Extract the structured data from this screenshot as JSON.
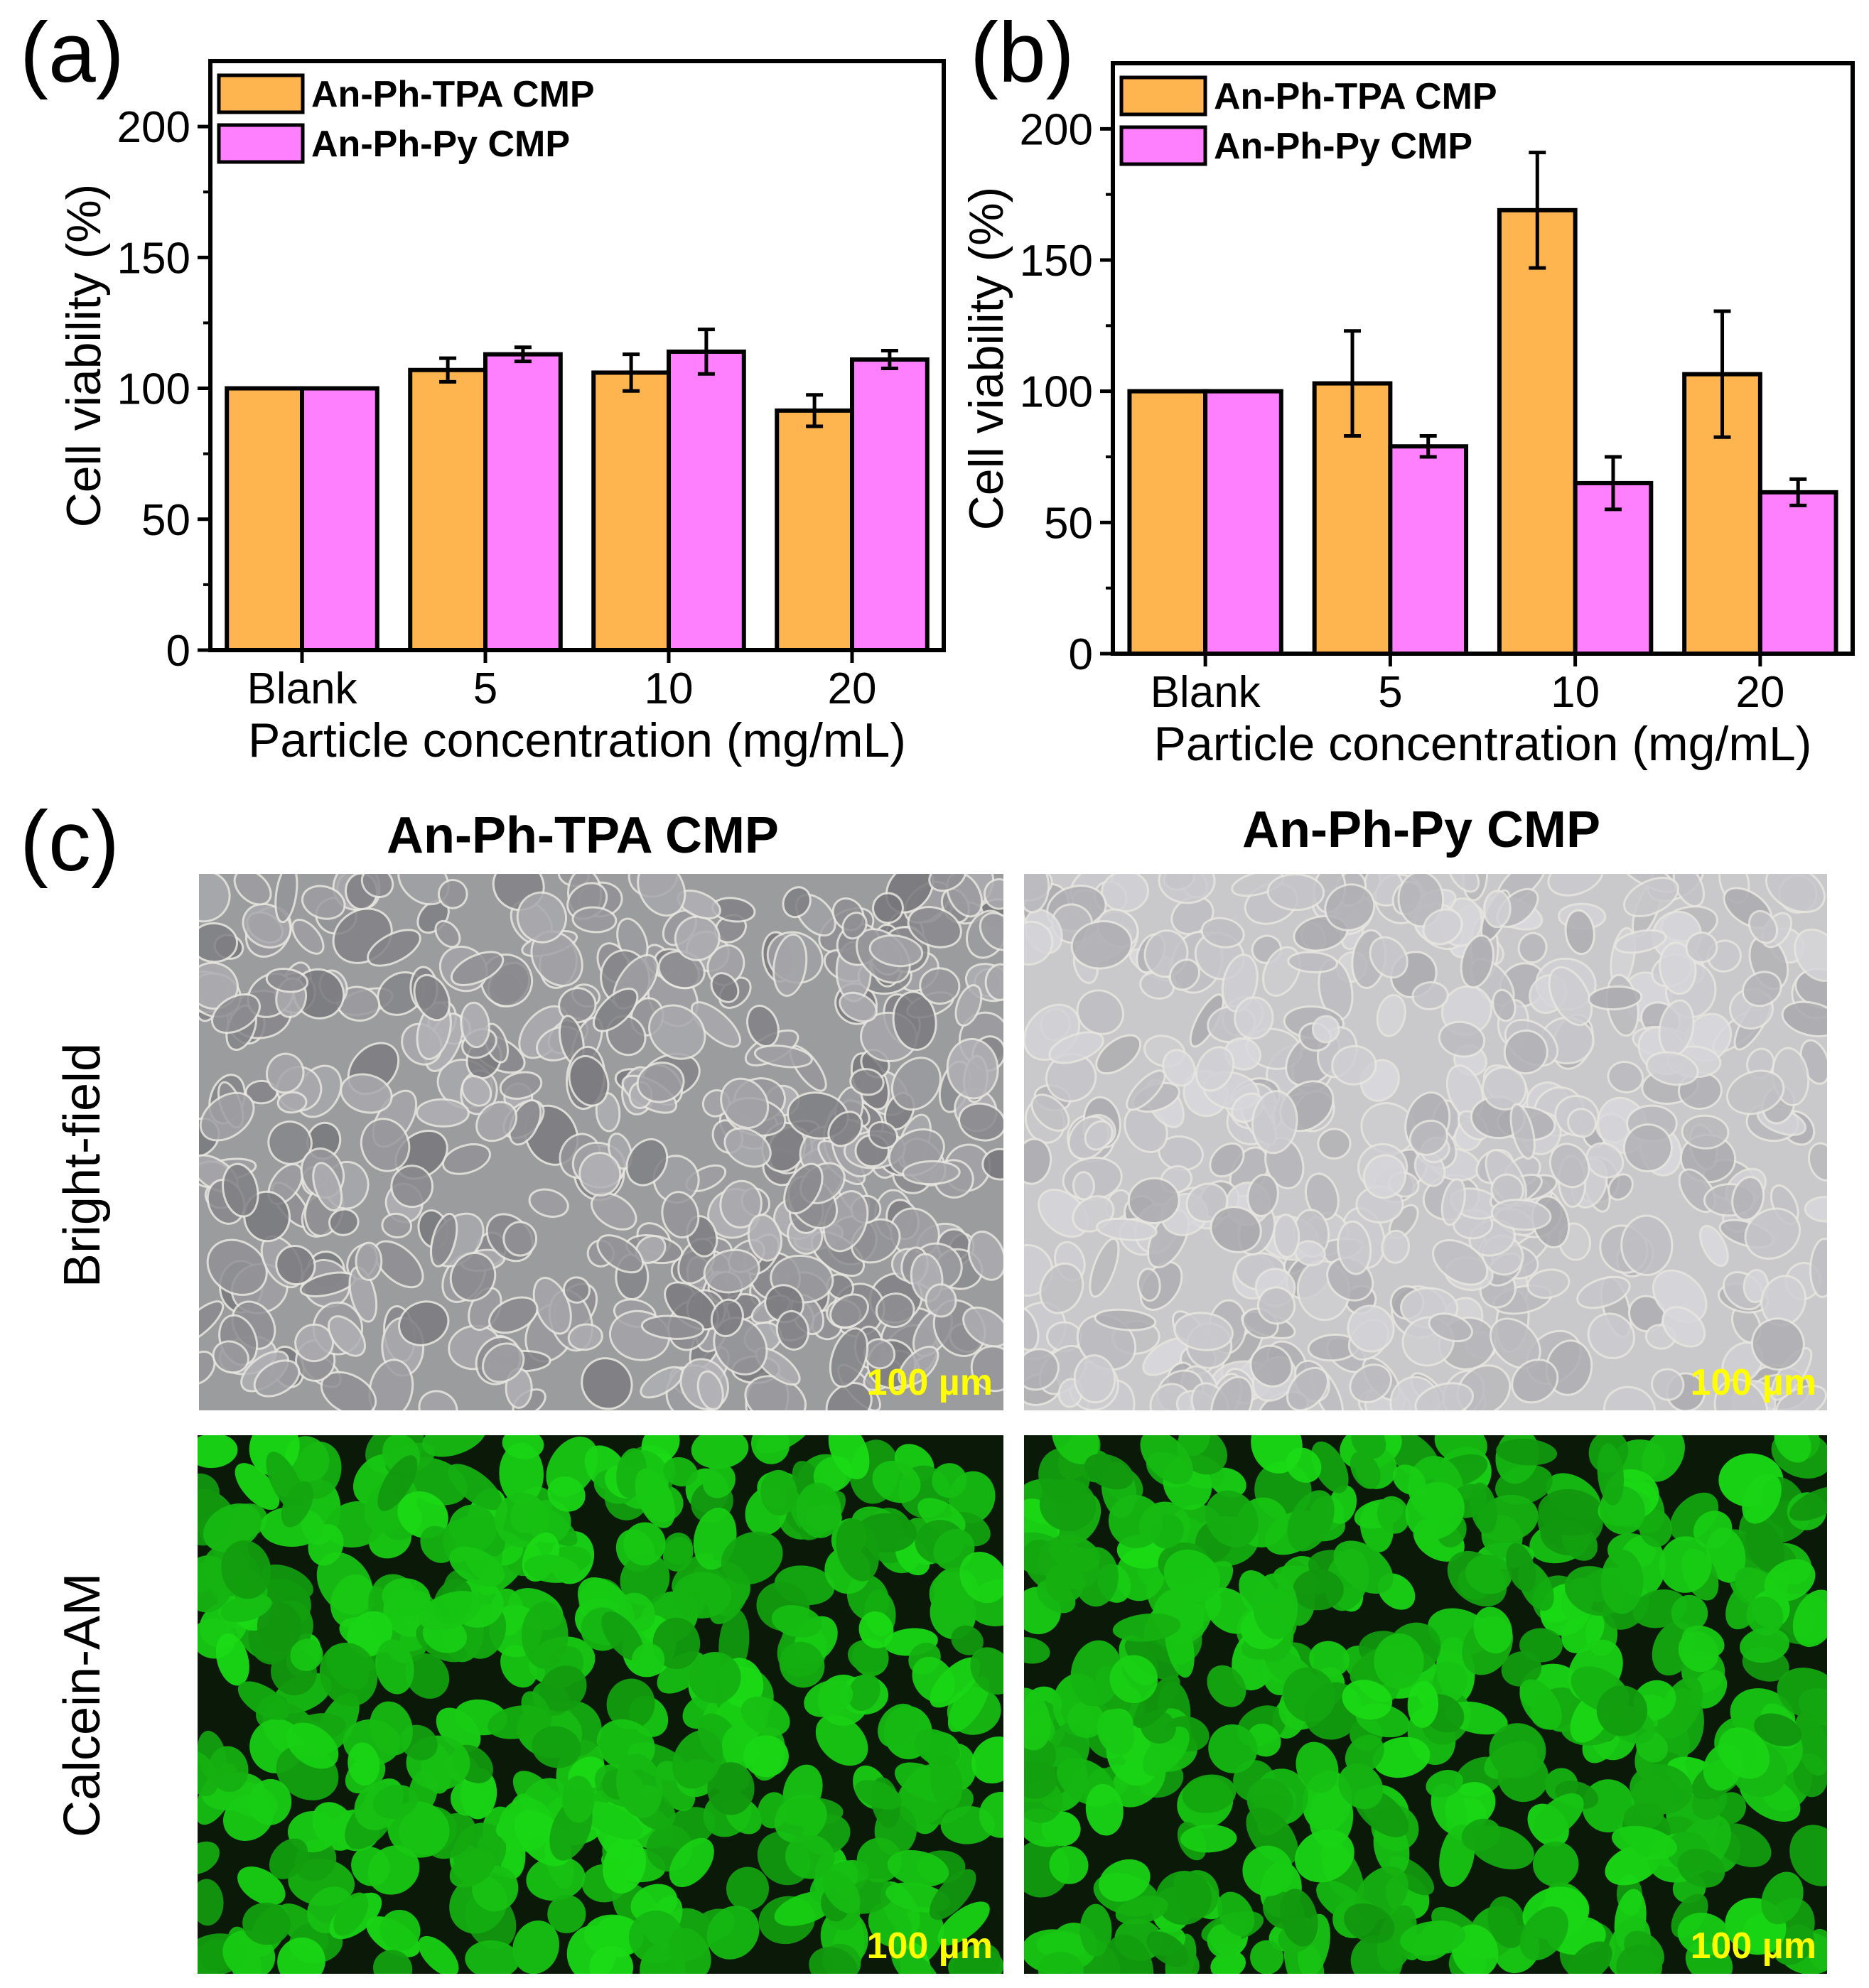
{
  "panel_labels": {
    "a": "(a)",
    "b": "(b)",
    "c": "(c)"
  },
  "colors": {
    "tpa": "#FFB54F",
    "py": "#FF80FF",
    "scale_text": "#FFFF00",
    "fluorescence": "#22C41E"
  },
  "chart_data": [
    {
      "type": "bar",
      "panel": "(a)",
      "xlabel": "Particle concentration (mg/mL)",
      "ylabel": "Cell viability (%)",
      "categories": [
        "Blank",
        "5",
        "10",
        "20"
      ],
      "ylim": [
        0,
        225
      ],
      "yticks": [
        "0",
        "50",
        "100",
        "150",
        "200"
      ],
      "legend": "top-left",
      "grid": false,
      "series": [
        {
          "name": "An-Ph-TPA CMP",
          "values": [
            100,
            107,
            106,
            91.5
          ],
          "errors": [
            0,
            4.5,
            7,
            6
          ]
        },
        {
          "name": "An-Ph-Py CMP",
          "values": [
            100,
            113,
            114,
            111
          ],
          "errors": [
            0,
            2.7,
            8.5,
            3.4
          ]
        }
      ]
    },
    {
      "type": "bar",
      "panel": "(b)",
      "xlabel": "Particle concentration (mg/mL)",
      "ylabel": "Cell viability (%)",
      "categories": [
        "Blank",
        "5",
        "10",
        "20"
      ],
      "ylim": [
        0,
        225
      ],
      "yticks": [
        "0",
        "50",
        "100",
        "150",
        "200"
      ],
      "legend": "top-left",
      "grid": false,
      "series": [
        {
          "name": "An-Ph-TPA CMP",
          "values": [
            100,
            103,
            169,
            106.5
          ],
          "errors": [
            0,
            20,
            22,
            24
          ]
        },
        {
          "name": "An-Ph-Py CMP",
          "values": [
            100,
            79,
            65,
            61.5
          ],
          "errors": [
            0,
            4,
            10,
            5
          ]
        }
      ]
    }
  ],
  "micrographs": {
    "column_titles": [
      "An-Ph-TPA CMP",
      "An-Ph-Py CMP"
    ],
    "row_labels": [
      "Bright-field",
      "Calcein-AM"
    ],
    "scale_bar": "100 µm"
  }
}
